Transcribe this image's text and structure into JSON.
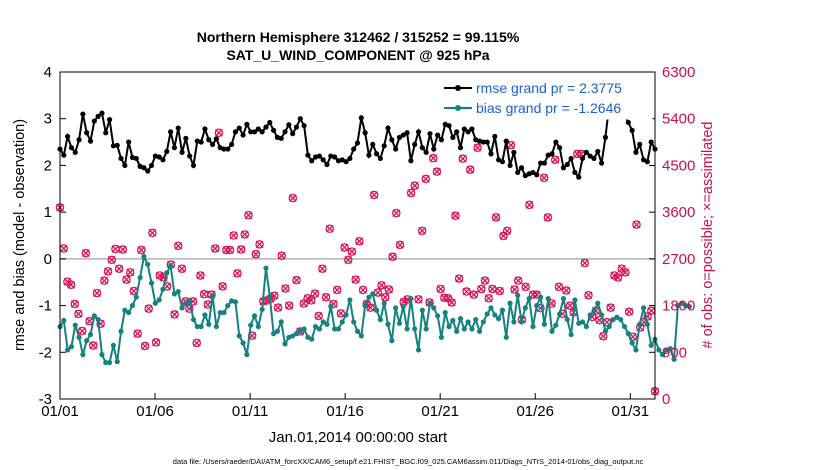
{
  "chart_data": {
    "type": "line",
    "title": "Northern Hemisphere 312462 / 315252 = 99.115%",
    "subtitle": "SAT_U_WIND_COMPONENT @ 925 hPa",
    "xlabel": "Jan.01,2014 00:00:00 start",
    "ylabel": "rmse and bias (model - observation)",
    "ylabel_right": "# of obs: o=possible; ×=assimilated",
    "x_ticks": [
      "01/01",
      "01/06",
      "01/11",
      "01/16",
      "01/21",
      "01/26",
      "01/31"
    ],
    "y_ticks": [
      "-3",
      "-2",
      "-1",
      "0",
      "1",
      "2",
      "3",
      "4"
    ],
    "y_ticks_right": [
      "0",
      "900",
      "1800",
      "2700",
      "3600",
      "4500",
      "5400",
      "6300"
    ],
    "ylim": [
      -3,
      4
    ],
    "ylim_right": [
      0,
      6300
    ],
    "xlim_days": [
      0,
      31.3
    ],
    "grid": false,
    "zero_line": true,
    "legend_position": "top-right",
    "colors": {
      "rmse": "#000000",
      "bias": "#138280",
      "obs": "#d8145a",
      "zero": "#b3b3b3",
      "legend_text": "#1a5fd6"
    },
    "series": [
      {
        "name": "rmse grand pr = 2.3775",
        "axis": "left",
        "values": [
          2.35,
          2.22,
          2.62,
          2.38,
          2.28,
          2.55,
          3.1,
          2.7,
          2.52,
          2.95,
          3.05,
          3.12,
          2.7,
          2.98,
          2.42,
          2.43,
          2.15,
          2.0,
          2.5,
          2.17,
          2.15,
          1.98,
          1.95,
          1.88,
          2.0,
          2.2,
          2.18,
          2.12,
          2.3,
          2.72,
          2.38,
          2.8,
          2.28,
          2.58,
          2.2,
          2.0,
          2.52,
          2.5,
          2.78,
          2.55,
          2.45,
          2.57,
          2.38,
          2.35,
          2.35,
          2.45,
          2.72,
          2.8,
          2.65,
          2.88,
          2.72,
          2.72,
          2.78,
          2.72,
          2.82,
          2.92,
          2.75,
          2.6,
          2.58,
          2.72,
          2.87,
          2.68,
          2.82,
          3.0,
          2.85,
          2.22,
          2.1,
          2.18,
          2.2,
          2.12,
          2.02,
          2.2,
          2.18,
          2.1,
          2.12,
          2.08,
          2.15,
          2.35,
          2.48,
          3.02,
          2.7,
          2.22,
          2.45,
          2.25,
          2.15,
          2.42,
          2.8,
          2.55,
          2.35,
          2.6,
          2.65,
          2.7,
          2.1,
          2.45,
          2.72,
          2.38,
          2.28,
          2.68,
          2.35,
          2.65,
          2.55,
          2.88,
          2.85,
          2.6,
          2.72,
          2.38,
          2.78,
          2.72,
          2.78,
          2.55,
          2.52,
          2.5,
          2.5,
          2.25,
          2.62,
          2.12,
          2.08,
          2.52,
          2.0,
          2.28,
          1.85,
          1.95,
          1.78,
          1.82,
          1.85,
          1.8,
          2.05,
          2.05,
          2.22,
          2.25,
          2.5,
          2.38,
          1.95,
          2.02,
          2.15,
          1.85,
          1.75,
          2.15,
          2.28,
          2.2,
          2.15,
          2.3,
          2.05,
          2.6,
          3.3,
          3.32,
          3.28,
          3.18,
          3.1,
          2.92,
          2.75,
          2.28,
          2.45,
          2.12,
          2.08,
          2.5,
          2.35
        ]
      },
      {
        "name": "bias grand pr = -1.2646",
        "axis": "left",
        "values": [
          -1.45,
          -1.32,
          -1.95,
          -1.88,
          -1.42,
          -1.68,
          -2.05,
          -1.75,
          -1.62,
          -1.22,
          -1.3,
          -2.05,
          -2.22,
          -2.22,
          -1.85,
          -2.2,
          -1.55,
          -1.1,
          -1.15,
          -1.0,
          -0.82,
          -0.4,
          0.05,
          -0.12,
          -0.52,
          -0.95,
          -0.88,
          -0.65,
          -0.3,
          -0.15,
          -0.75,
          -0.7,
          -1.05,
          -0.95,
          -0.9,
          -1.3,
          -1.45,
          -1.45,
          -1.2,
          -1.4,
          -0.8,
          -1.45,
          -1.15,
          -1.15,
          -1.0,
          -0.9,
          -0.92,
          -1.65,
          -1.8,
          -2.05,
          -1.42,
          -1.22,
          -1.45,
          -1.08,
          -0.2,
          -0.8,
          -1.6,
          -1.55,
          -1.35,
          -1.82,
          -1.68,
          -1.65,
          -1.6,
          -1.55,
          -1.5,
          -1.68,
          -1.72,
          -1.45,
          -1.5,
          -1.35,
          -1.4,
          -1.02,
          -1.5,
          -1.5,
          -1.35,
          -1.2,
          -0.88,
          -1.35,
          -1.55,
          -1.65,
          -1.0,
          -0.82,
          -0.75,
          -1.1,
          -1.3,
          -0.95,
          -1.4,
          -1.75,
          -1.05,
          -1.38,
          -1.02,
          -1.5,
          -0.85,
          -1.5,
          -1.95,
          -1.1,
          -1.5,
          -0.95,
          -1.05,
          -1.22,
          -1.68,
          -1.15,
          -1.45,
          -1.32,
          -1.55,
          -1.28,
          -1.5,
          -1.35,
          -1.5,
          -1.3,
          -1.55,
          -1.35,
          -1.18,
          -1.05,
          -1.2,
          -1.28,
          -1.1,
          -1.68,
          -0.95,
          -1.35,
          -0.78,
          -1.35,
          -1.05,
          -0.85,
          -1.45,
          -1.0,
          -0.82,
          -1.4,
          -0.85,
          -1.55,
          -1.42,
          -1.18,
          -0.85,
          -1.3,
          -1.62,
          -0.88,
          -1.38,
          -1.35,
          -1.45,
          -1.2,
          -1.12,
          -0.95,
          -1.2,
          -1.55,
          -1.45,
          -1.3,
          -1.25,
          -1.3,
          -1.45,
          -1.6,
          -1.8,
          -1.95,
          -1.4,
          -1.05,
          -1.4,
          -1.85,
          -1.72,
          -1.95,
          -2.05,
          -1.95,
          -1.92,
          -2.15,
          -1.0,
          -0.95,
          -1.0,
          -1.02
        ]
      },
      {
        "name": "obs possible",
        "axis": "right",
        "marker": "o",
        "values": [
          3690,
          2900,
          2260,
          2200,
          1830,
          1640,
          1310,
          2810,
          1500,
          1030,
          2040,
          1450,
          2280,
          2460,
          2680,
          2890,
          2510,
          2880,
          2300,
          2440,
          2080,
          1260,
          2870,
          1020,
          1740,
          3200,
          1090,
          2380,
          2340,
          2170,
          2590,
          1630,
          2950,
          2510,
          1880,
          1740,
          1880,
          1080,
          2380,
          2020,
          1820,
          2010,
          2900,
          5130,
          2170,
          2870,
          2870,
          3150,
          2420,
          2880,
          3170,
          3540,
          1220,
          2790,
          2980,
          1880,
          1900,
          1930,
          1990,
          1760,
          2760,
          2130,
          1800,
          3870,
          2290,
          1300,
          1840,
          1940,
          1900,
          2030,
          1600,
          2510,
          1960,
          3280,
          1830,
          2100,
          1650,
          2920,
          2680,
          2840,
          2300,
          3040,
          2100,
          1830,
          1760,
          3930,
          2050,
          2190,
          1960,
          2110,
          2740,
          3580,
          2970,
          1870,
          1920,
          3970,
          4110,
          1920,
          3240,
          4240,
          1860,
          4640,
          4380,
          2120,
          1950,
          1940,
          1860,
          3530,
          2320,
          4630,
          2070,
          4420,
          2010,
          4840,
          2120,
          2280,
          1940,
          2120,
          3500,
          2080,
          3140,
          3240,
          4890,
          2110,
          2280,
          1530,
          2160,
          3740,
          2010,
          2010,
          1750,
          4260,
          3500,
          1840,
          4610,
          2160,
          1640,
          2090,
          1800,
          1670,
          4720,
          4720,
          2620,
          2000,
          1580,
          1700,
          1520,
          1210,
          1480,
          1760,
          2380,
          2340,
          2510,
          2440,
          1680,
          1200,
          3360,
          1380,
          1480,
          1590,
          1700,
          150
        ]
      },
      {
        "name": "obs assimilated",
        "axis": "right",
        "marker": "x",
        "values": [
          3690,
          2900,
          2260,
          2200,
          1830,
          1640,
          1310,
          2810,
          1500,
          1030,
          2040,
          1450,
          2280,
          2460,
          2680,
          2890,
          2510,
          2880,
          2300,
          2440,
          2080,
          1260,
          2870,
          1020,
          1740,
          3200,
          1090,
          2380,
          2340,
          2170,
          2590,
          1630,
          2950,
          2510,
          1880,
          1740,
          1880,
          1080,
          2380,
          2020,
          1820,
          2010,
          2900,
          5130,
          2170,
          2870,
          2870,
          3150,
          2420,
          2880,
          3170,
          3540,
          1220,
          2790,
          2980,
          1880,
          1900,
          1930,
          1990,
          1760,
          2760,
          2130,
          1800,
          3870,
          2290,
          1300,
          1840,
          1940,
          1900,
          2030,
          1600,
          2510,
          1960,
          3280,
          1830,
          2100,
          1650,
          2920,
          2680,
          2840,
          2300,
          3040,
          2100,
          1830,
          1760,
          3930,
          2050,
          2190,
          1960,
          2110,
          2740,
          3580,
          2970,
          1870,
          1920,
          3970,
          4110,
          1920,
          3240,
          4240,
          1860,
          4640,
          4380,
          2120,
          1950,
          1940,
          1860,
          3530,
          2320,
          4630,
          2070,
          4420,
          2010,
          4840,
          2120,
          2280,
          1940,
          2120,
          3500,
          2080,
          3140,
          3240,
          4890,
          2110,
          2280,
          1530,
          2160,
          3740,
          2010,
          2010,
          1750,
          4260,
          3500,
          1840,
          4610,
          2160,
          1640,
          2090,
          1800,
          1670,
          4720,
          4720,
          2620,
          2000,
          1580,
          1700,
          1520,
          1210,
          1480,
          1760,
          2380,
          2340,
          2510,
          2440,
          1680,
          1200,
          3360,
          1380,
          1480,
          1590,
          1700,
          150
        ]
      }
    ]
  },
  "footer": "data file: /Users/raeder/DAI/ATM_forcXX/CAM6_setup/f.e21.FHIST_BGC.f09_025.CAM6assim.011/Diags_NTrS_2014-01/obs_diag_output.nc"
}
